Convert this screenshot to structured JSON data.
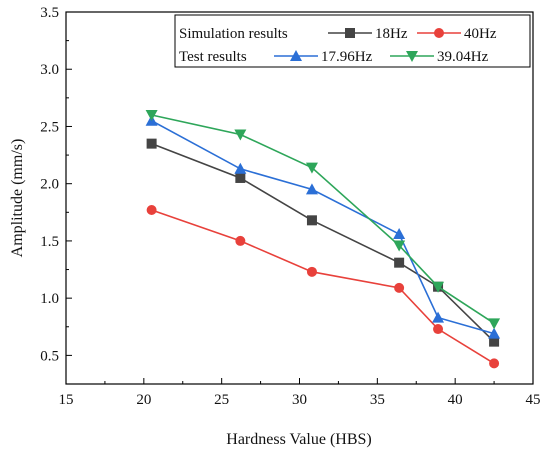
{
  "chart_data": {
    "type": "line",
    "title": "",
    "xlabel": "Hardness Value (HBS)",
    "ylabel": "Amplitude (mm/s)",
    "xlim": [
      15,
      45
    ],
    "ylim": [
      0.25,
      3.5
    ],
    "xticks": [
      15,
      20,
      25,
      30,
      35,
      40,
      45
    ],
    "yticks": [
      0.5,
      1.0,
      1.5,
      2.0,
      2.5,
      3.0,
      3.5
    ],
    "xtick_labels": [
      "15",
      "20",
      "25",
      "30",
      "35",
      "40",
      "45"
    ],
    "ytick_labels": [
      "0.5",
      "1.0",
      "1.5",
      "2.0",
      "2.5",
      "3.0",
      "3.5"
    ],
    "grid": false,
    "legend_position": "top-right",
    "legend_groups": [
      {
        "label": "Simulation results",
        "series_indices": [
          0,
          1
        ]
      },
      {
        "label": "Test results",
        "series_indices": [
          2,
          3
        ]
      }
    ],
    "series": [
      {
        "name": "18Hz",
        "color": "#444444",
        "marker": "square",
        "x": [
          20.5,
          26.2,
          30.8,
          36.4,
          38.9,
          42.5
        ],
        "y": [
          2.35,
          2.05,
          1.68,
          1.31,
          1.1,
          0.62
        ]
      },
      {
        "name": "40Hz",
        "color": "#e8413b",
        "marker": "circle",
        "x": [
          20.5,
          26.2,
          30.8,
          36.4,
          38.9,
          42.5
        ],
        "y": [
          1.77,
          1.5,
          1.23,
          1.09,
          0.73,
          0.43
        ]
      },
      {
        "name": "17.96Hz",
        "color": "#2b6fd6",
        "marker": "triangle-up",
        "x": [
          20.5,
          26.2,
          30.8,
          36.4,
          38.9,
          42.5
        ],
        "y": [
          2.55,
          2.13,
          1.95,
          1.56,
          0.83,
          0.69
        ]
      },
      {
        "name": "39.04Hz",
        "color": "#2ea65a",
        "marker": "triangle-down",
        "x": [
          20.5,
          26.2,
          30.8,
          36.4,
          38.9,
          42.5
        ],
        "y": [
          2.6,
          2.43,
          2.14,
          1.46,
          1.1,
          0.78
        ]
      }
    ]
  }
}
